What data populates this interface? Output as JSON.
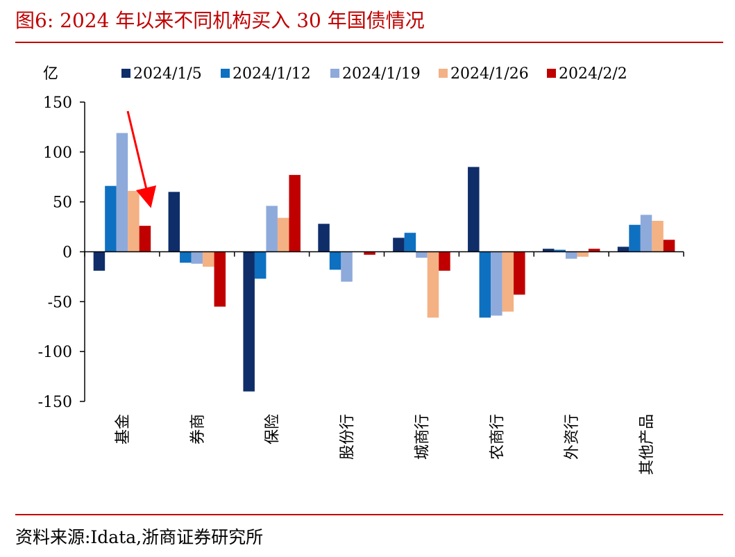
{
  "header": {
    "figure_title": "图6:  2024 年以来不同机构买入 30 年国债情况"
  },
  "footer": {
    "source": "资料来源:Idata,浙商证券研究所"
  },
  "colors": {
    "accent": "#c00000",
    "series": [
      "#0f2d69",
      "#0e70c0",
      "#8eaadb",
      "#f4b183",
      "#c00000"
    ],
    "annotation_arrow": "#ff0000"
  },
  "chart_data": {
    "type": "bar",
    "ylabel": "亿",
    "ylim": [
      -150,
      150
    ],
    "yticks": [
      150,
      100,
      50,
      0,
      -50,
      -100,
      -150
    ],
    "categories": [
      "基金",
      "券商",
      "保险",
      "股份行",
      "城商行",
      "农商行",
      "外资行",
      "其他产品"
    ],
    "series": [
      {
        "name": "2024/1/5",
        "values": [
          -19,
          60,
          -140,
          28,
          14,
          85,
          3,
          5
        ]
      },
      {
        "name": "2024/1/12",
        "values": [
          66,
          -11,
          -27,
          -18,
          19,
          -66,
          2,
          27
        ]
      },
      {
        "name": "2024/1/19",
        "values": [
          119,
          -12,
          46,
          -30,
          -6,
          -64,
          -7,
          37
        ]
      },
      {
        "name": "2024/1/26",
        "values": [
          61,
          -15,
          34,
          0,
          -66,
          -60,
          -5,
          31
        ]
      },
      {
        "name": "2024/2/2",
        "values": [
          26,
          -55,
          77,
          -3,
          -19,
          -43,
          3,
          12
        ]
      }
    ],
    "legend_position": "top",
    "grid": false,
    "annotation": {
      "type": "arrow",
      "target_category": "基金",
      "color": "#ff0000"
    }
  }
}
